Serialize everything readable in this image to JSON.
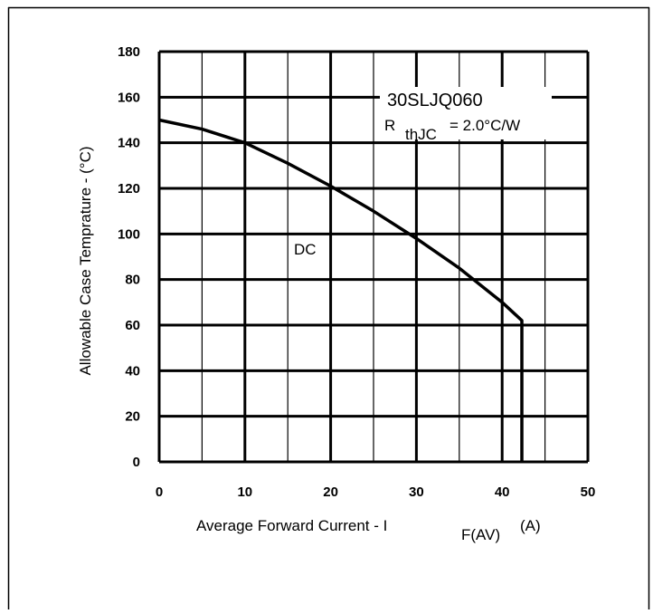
{
  "chart_data": {
    "type": "line",
    "title": "",
    "xlabel": "Average Forward Current  - I",
    "xlabel_sub": "F(AV)",
    "xlabel_unit": "(A)",
    "ylabel": "Allowable Case Temprature - (°C)",
    "xlim": [
      0,
      50
    ],
    "ylim": [
      0,
      180
    ],
    "x_ticks": [
      0,
      10,
      20,
      30,
      40,
      50
    ],
    "y_ticks": [
      0,
      20,
      40,
      60,
      80,
      100,
      120,
      140,
      160,
      180
    ],
    "x_tick_labels": [
      "0",
      "10",
      "20",
      "30",
      "40",
      "50"
    ],
    "y_tick_labels": [
      "0",
      "20",
      "40",
      "60",
      "80",
      "100",
      "120",
      "140",
      "160",
      "180"
    ],
    "grid": true,
    "series": [
      {
        "name": "DC",
        "x": [
          0,
          5,
          10,
          15,
          20,
          25,
          30,
          35,
          40,
          42.3,
          42.3
        ],
        "y": [
          150,
          146,
          140,
          131,
          121,
          110,
          98,
          85,
          70,
          62,
          0
        ]
      }
    ],
    "annotations": {
      "part_number": "30SLJQ060",
      "rth_prefix": "R",
      "rth_sub": "thJC",
      "rth_value": "=  2.0°C/W",
      "series_label": "DC"
    }
  }
}
